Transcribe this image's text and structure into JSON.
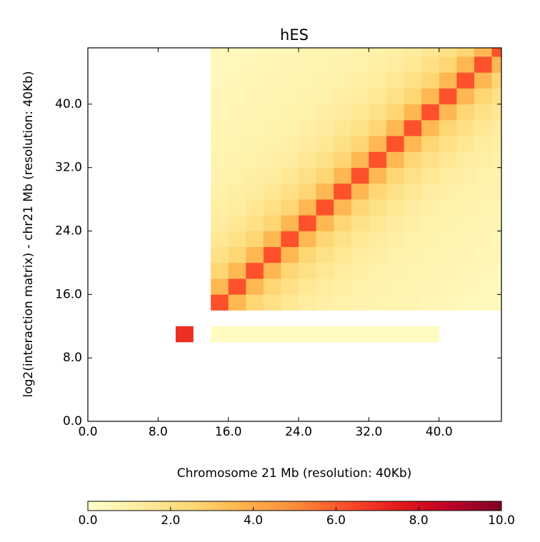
{
  "chart_data": {
    "type": "heatmap",
    "title": "hES",
    "x_label": "Chromosome 21 Mb (resolution: 40Kb)",
    "y_label": "log2(interaction matrix) - chr21 Mb (resolution: 40Kb)",
    "xlim": [
      0,
      47.1
    ],
    "ylim": [
      0,
      47.1
    ],
    "xticks": [
      {
        "value": 0,
        "label": "0.0"
      },
      {
        "value": 8,
        "label": "8.0"
      },
      {
        "value": 16,
        "label": "16.0"
      },
      {
        "value": 24,
        "label": "24.0"
      },
      {
        "value": 32,
        "label": "32.0"
      },
      {
        "value": 40,
        "label": "40.0"
      }
    ],
    "yticks": [
      {
        "value": 0,
        "label": "0.0"
      },
      {
        "value": 8,
        "label": "8.0"
      },
      {
        "value": 16,
        "label": "16.0"
      },
      {
        "value": 24,
        "label": "24.0"
      },
      {
        "value": 32,
        "label": "32.0"
      },
      {
        "value": 40,
        "label": "40.0"
      }
    ],
    "bins": [
      0,
      2,
      4,
      6,
      8,
      10,
      12,
      14,
      16,
      18,
      20,
      22,
      24,
      26,
      28,
      30,
      32,
      34,
      36,
      38,
      40,
      42,
      44,
      46,
      47.1
    ],
    "colormap": [
      "#ffffcc",
      "#ffeda0",
      "#fed976",
      "#feb24c",
      "#fd8d3c",
      "#fc4e2a",
      "#e31a1c",
      "#bd0026",
      "#800026"
    ],
    "clim": [
      0,
      10
    ],
    "cticks": [
      {
        "value": 0,
        "label": "0.0"
      },
      {
        "value": 2,
        "label": "2.0"
      },
      {
        "value": 4,
        "label": "4.0"
      },
      {
        "value": 6,
        "label": "6.0"
      },
      {
        "value": 8,
        "label": "8.0"
      },
      {
        "value": 10,
        "label": "10.0"
      }
    ],
    "matrix": [
      [
        null,
        null,
        null,
        null,
        null,
        null,
        null,
        null,
        null,
        null,
        null,
        null,
        null,
        null,
        null,
        null,
        null,
        null,
        null,
        null,
        null,
        null,
        null,
        null
      ],
      [
        null,
        null,
        null,
        null,
        null,
        null,
        null,
        null,
        null,
        null,
        null,
        null,
        null,
        null,
        null,
        null,
        null,
        null,
        null,
        null,
        null,
        null,
        null,
        null
      ],
      [
        null,
        null,
        null,
        null,
        null,
        null,
        null,
        null,
        null,
        null,
        null,
        null,
        null,
        null,
        null,
        null,
        null,
        null,
        null,
        null,
        null,
        null,
        null,
        null
      ],
      [
        null,
        null,
        null,
        null,
        null,
        null,
        null,
        null,
        null,
        null,
        null,
        null,
        null,
        null,
        null,
        null,
        null,
        null,
        null,
        null,
        null,
        null,
        null,
        null
      ],
      [
        null,
        null,
        null,
        null,
        null,
        null,
        null,
        null,
        null,
        null,
        null,
        null,
        null,
        null,
        null,
        null,
        null,
        null,
        null,
        null,
        null,
        null,
        null,
        null
      ],
      [
        null,
        null,
        null,
        null,
        null,
        7,
        null,
        0.3,
        0.3,
        0.3,
        0.3,
        0.3,
        0.3,
        0.3,
        0.3,
        0.3,
        0.3,
        0.3,
        0.3,
        0.3,
        null,
        null,
        null,
        null
      ],
      [
        null,
        null,
        null,
        null,
        null,
        null,
        null,
        null,
        null,
        null,
        null,
        null,
        null,
        null,
        null,
        null,
        null,
        null,
        null,
        null,
        null,
        null,
        null,
        null
      ],
      [
        null,
        null,
        null,
        null,
        null,
        null,
        null,
        6.2,
        3.6,
        2.6,
        2.0,
        1.6,
        1.3,
        1.1,
        1.0,
        0.9,
        0.8,
        0.7,
        0.7,
        0.6,
        0.6,
        0.5,
        0.5,
        0.5
      ],
      [
        null,
        null,
        null,
        null,
        null,
        null,
        null,
        3.6,
        6.2,
        3.6,
        2.6,
        2.0,
        1.6,
        1.3,
        1.1,
        1.0,
        0.9,
        0.8,
        0.7,
        0.7,
        0.6,
        0.6,
        0.5,
        0.5
      ],
      [
        null,
        null,
        null,
        null,
        null,
        null,
        null,
        2.6,
        3.6,
        6.2,
        3.6,
        2.6,
        2.0,
        1.6,
        1.3,
        1.1,
        1.0,
        0.9,
        0.8,
        0.7,
        0.7,
        0.6,
        0.6,
        0.5
      ],
      [
        null,
        null,
        null,
        null,
        null,
        null,
        null,
        2.0,
        2.6,
        3.6,
        6.2,
        3.6,
        2.6,
        2.0,
        1.6,
        1.3,
        1.1,
        1.0,
        0.9,
        0.8,
        0.7,
        0.7,
        0.6,
        0.6
      ],
      [
        null,
        null,
        null,
        null,
        null,
        null,
        null,
        1.6,
        2.0,
        2.6,
        3.6,
        6.2,
        3.6,
        2.6,
        2.0,
        1.6,
        1.3,
        1.1,
        1.0,
        0.9,
        0.8,
        0.7,
        0.7,
        0.6
      ],
      [
        null,
        null,
        null,
        null,
        null,
        null,
        null,
        1.3,
        1.6,
        2.0,
        2.6,
        3.6,
        6.2,
        3.6,
        2.6,
        2.0,
        1.6,
        1.3,
        1.1,
        1.0,
        0.9,
        0.8,
        0.7,
        0.7
      ],
      [
        null,
        null,
        null,
        null,
        null,
        null,
        null,
        1.1,
        1.3,
        1.6,
        2.0,
        2.6,
        3.6,
        6.2,
        3.6,
        2.6,
        2.0,
        1.6,
        1.3,
        1.1,
        1.0,
        0.9,
        0.8,
        0.7
      ],
      [
        null,
        null,
        null,
        null,
        null,
        null,
        null,
        1.0,
        1.1,
        1.3,
        1.6,
        2.0,
        2.6,
        3.6,
        6.2,
        3.6,
        2.6,
        2.0,
        1.6,
        1.3,
        1.1,
        1.0,
        0.9,
        0.8
      ],
      [
        null,
        null,
        null,
        null,
        null,
        null,
        null,
        0.9,
        1.0,
        1.1,
        1.3,
        1.6,
        2.0,
        2.6,
        3.6,
        6.2,
        3.6,
        2.6,
        2.0,
        1.6,
        1.3,
        1.1,
        1.0,
        0.9
      ],
      [
        null,
        null,
        null,
        null,
        null,
        null,
        null,
        0.8,
        0.9,
        1.0,
        1.1,
        1.3,
        1.6,
        2.0,
        2.6,
        3.6,
        6.2,
        3.6,
        2.6,
        2.0,
        1.6,
        1.3,
        1.1,
        1.0
      ],
      [
        null,
        null,
        null,
        null,
        null,
        null,
        null,
        0.7,
        0.8,
        0.9,
        1.0,
        1.1,
        1.3,
        1.6,
        2.0,
        2.6,
        3.6,
        6.2,
        3.6,
        2.6,
        2.0,
        1.6,
        1.3,
        1.1
      ],
      [
        null,
        null,
        null,
        null,
        null,
        null,
        null,
        0.7,
        0.7,
        0.8,
        0.9,
        1.0,
        1.1,
        1.3,
        1.6,
        2.0,
        2.6,
        3.6,
        6.2,
        3.6,
        2.6,
        2.0,
        1.6,
        1.3
      ],
      [
        null,
        null,
        null,
        null,
        null,
        null,
        null,
        0.6,
        0.7,
        0.7,
        0.8,
        0.9,
        1.0,
        1.1,
        1.3,
        1.6,
        2.0,
        2.6,
        3.6,
        6.2,
        3.6,
        2.6,
        2.0,
        1.6
      ],
      [
        null,
        null,
        null,
        null,
        null,
        null,
        null,
        0.6,
        0.6,
        0.7,
        0.7,
        0.8,
        0.9,
        1.0,
        1.1,
        1.3,
        1.6,
        2.0,
        2.6,
        3.6,
        6.2,
        3.6,
        2.6,
        2.0
      ],
      [
        null,
        null,
        null,
        null,
        null,
        null,
        null,
        0.5,
        0.6,
        0.6,
        0.7,
        0.7,
        0.8,
        0.9,
        1.0,
        1.1,
        1.3,
        1.6,
        2.0,
        2.6,
        3.6,
        6.2,
        3.6,
        2.6
      ],
      [
        null,
        null,
        null,
        null,
        null,
        null,
        null,
        0.5,
        0.5,
        0.6,
        0.6,
        0.7,
        0.7,
        0.8,
        0.9,
        1.0,
        1.1,
        1.3,
        1.6,
        2.0,
        2.6,
        3.6,
        6.2,
        3.6
      ],
      [
        null,
        null,
        null,
        null,
        null,
        null,
        null,
        0.5,
        0.5,
        0.5,
        0.6,
        0.6,
        0.7,
        0.7,
        0.8,
        0.9,
        1.0,
        1.1,
        1.3,
        1.6,
        2.0,
        2.6,
        3.6,
        6.2
      ]
    ]
  }
}
